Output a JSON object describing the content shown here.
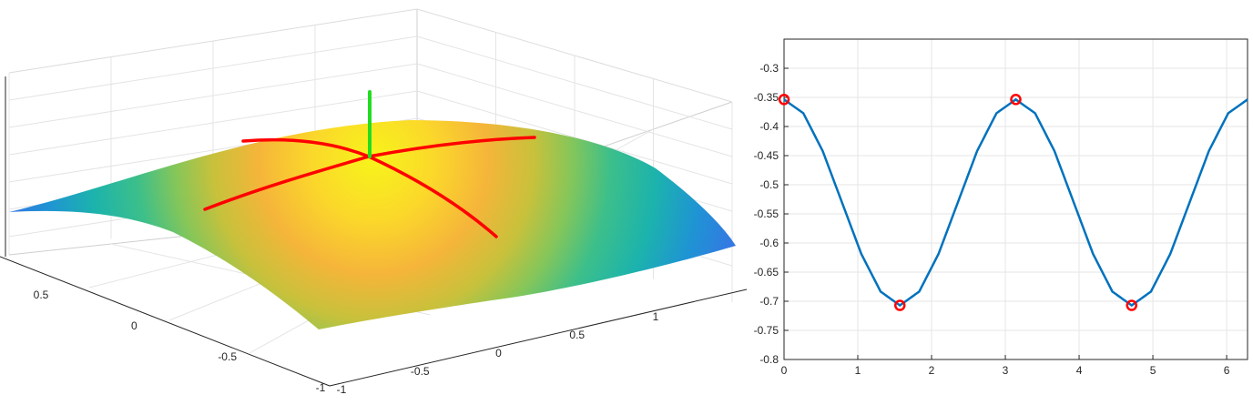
{
  "chart_data": [
    {
      "type": "surface",
      "x_ticks": [
        "-1",
        "-0.5",
        "0",
        "0.5",
        "1"
      ],
      "y_ticks": [
        "0.5",
        "0",
        "-0.5",
        "-1"
      ],
      "xlim": [
        -1,
        1
      ],
      "ylim": [
        -1,
        1
      ],
      "grid": true,
      "colormap": "parula",
      "curve_color": "#ff0000",
      "normal_color": "#22dd22",
      "title": "",
      "xlabel": "",
      "ylabel": "",
      "zlabel": ""
    },
    {
      "type": "line",
      "xlim": [
        0,
        6.2832
      ],
      "ylim": [
        -0.8,
        -0.25
      ],
      "x_ticks": [
        "0",
        "1",
        "2",
        "3",
        "4",
        "5",
        "6"
      ],
      "y_ticks": [
        "-0.3",
        "-0.35",
        "-0.4",
        "-0.45",
        "-0.5",
        "-0.55",
        "-0.6",
        "-0.65",
        "-0.7",
        "-0.75",
        "-0.8"
      ],
      "x_tick_values": [
        0,
        1,
        2,
        3,
        4,
        5,
        6
      ],
      "y_tick_values": [
        -0.3,
        -0.35,
        -0.4,
        -0.45,
        -0.5,
        -0.55,
        -0.6,
        -0.65,
        -0.7,
        -0.75,
        -0.8
      ],
      "series": [
        {
          "line_color": "#0072bd",
          "x": [
            0,
            0.2618,
            0.5236,
            0.7854,
            1.0472,
            1.309,
            1.5708,
            1.8326,
            2.0944,
            2.3562,
            2.618,
            2.8798,
            3.1416,
            3.4034,
            3.6652,
            3.927,
            4.1888,
            4.4506,
            4.7124,
            4.9742,
            5.236,
            5.4978,
            5.7596,
            6.0214,
            6.2832
          ],
          "y": [
            -0.3536,
            -0.3772,
            -0.4419,
            -0.5303,
            -0.6187,
            -0.6834,
            -0.7071,
            -0.6834,
            -0.6187,
            -0.5303,
            -0.4419,
            -0.3772,
            -0.3536,
            -0.3772,
            -0.4419,
            -0.5303,
            -0.6187,
            -0.6834,
            -0.7071,
            -0.6834,
            -0.6187,
            -0.5303,
            -0.4419,
            -0.3772,
            -0.3536
          ]
        }
      ],
      "markers": {
        "color": "#ff0000",
        "style": "open-circle",
        "x": [
          0,
          1.5708,
          3.1416,
          4.7124
        ],
        "y": [
          -0.3536,
          -0.7071,
          -0.3536,
          -0.7071
        ]
      },
      "grid": true,
      "title": "",
      "xlabel": "",
      "ylabel": ""
    }
  ]
}
